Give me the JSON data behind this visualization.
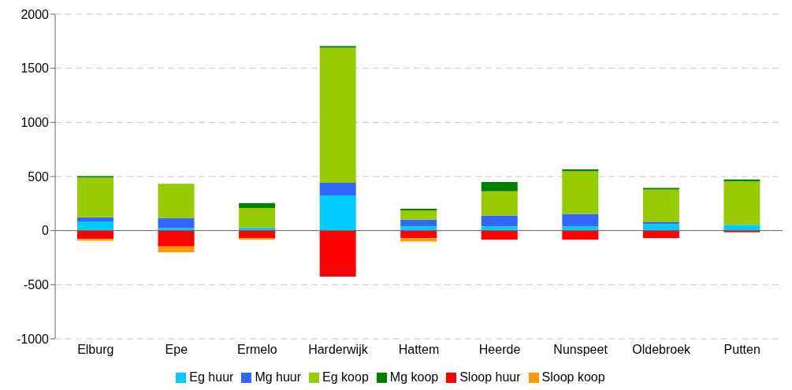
{
  "chart_data": {
    "type": "bar",
    "stacked": true,
    "categories": [
      "Elburg",
      "Epe",
      "Ermelo",
      "Harderwijk",
      "Hattem",
      "Heerde",
      "Nunspeet",
      "Oldebroek",
      "Putten"
    ],
    "series": [
      {
        "name": "Eg huur",
        "color": "#00ccff",
        "values": [
          85,
          23,
          28,
          325,
          39,
          39,
          39,
          62,
          54
        ]
      },
      {
        "name": "Mg huur",
        "color": "#3366ff",
        "values": [
          39,
          93,
          0,
          116,
          62,
          100,
          116,
          15,
          0
        ]
      },
      {
        "name": "Eg koop",
        "color": "#99cc00",
        "values": [
          366,
          317,
          181,
          1249,
          85,
          225,
          395,
          302,
          403
        ]
      },
      {
        "name": "Mg koop",
        "color": "#008000",
        "values": [
          13,
          0,
          46,
          15,
          15,
          85,
          15,
          16,
          15
        ]
      },
      {
        "name": "Sloop huur",
        "color": "#ff0000",
        "values": [
          -77,
          -147,
          -70,
          -425,
          -70,
          -85,
          -85,
          -70,
          -15
        ]
      },
      {
        "name": "Sloop koop",
        "color": "#ff9900",
        "values": [
          -16,
          -54,
          -15,
          0,
          -31,
          0,
          0,
          0,
          0
        ]
      }
    ],
    "ylim": [
      -1000,
      2000
    ],
    "yticks": [
      -1000,
      -500,
      0,
      500,
      1000,
      1500,
      2000
    ],
    "grid": "y",
    "legend": "bottom"
  }
}
